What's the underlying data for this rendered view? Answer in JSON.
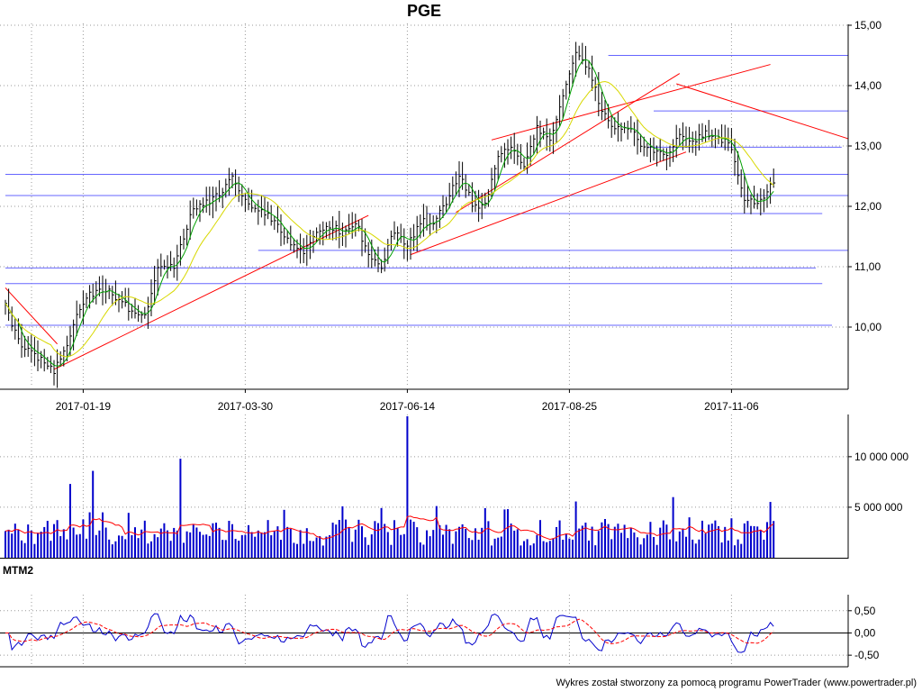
{
  "title": "PGE",
  "footer": "Wykres został stworzony za pomocą programu PowerTrader (www.powertrader.pl)",
  "colors": {
    "price_bar": "#000000",
    "ma_fast": "#00a000",
    "ma_slow": "#d8d800",
    "trendline": "#ff0000",
    "support_resistance": "#6666ff",
    "volume_bar": "#0000cc",
    "volume_ma": "#ff0000",
    "mtm_line": "#0000cc",
    "mtm_signal": "#ff0000",
    "grid": "#999999"
  },
  "chart_data": [
    {
      "type": "ohlc",
      "panel": "price",
      "title": "PGE",
      "x_tick_labels": [
        "2017-01-19",
        "2017-03-30",
        "2017-06-14",
        "2017-08-25",
        "2017-11-06"
      ],
      "x_ticks": [
        {
          "label": "2017-01-19",
          "index": 24
        },
        {
          "label": "2017-03-30",
          "index": 74
        },
        {
          "label": "2017-06-14",
          "index": 124
        },
        {
          "label": "2017-08-25",
          "index": 174
        },
        {
          "label": "2017-11-06",
          "index": 224
        }
      ],
      "y_tick_labels": [
        "10,00",
        "11,00",
        "12,00",
        "13,00",
        "14,00",
        "15,00"
      ],
      "ylim": [
        9.0,
        15.0
      ],
      "bar_count": 238,
      "anchors": [
        {
          "i": 0,
          "close": 10.35
        },
        {
          "i": 4,
          "close": 9.75
        },
        {
          "i": 10,
          "close": 9.5
        },
        {
          "i": 15,
          "close": 9.25
        },
        {
          "i": 18,
          "close": 9.6
        },
        {
          "i": 22,
          "close": 10.2
        },
        {
          "i": 26,
          "close": 10.55
        },
        {
          "i": 32,
          "close": 10.6
        },
        {
          "i": 36,
          "close": 10.4
        },
        {
          "i": 40,
          "close": 10.2
        },
        {
          "i": 43,
          "close": 10.15
        },
        {
          "i": 47,
          "close": 11.0
        },
        {
          "i": 52,
          "close": 11.0
        },
        {
          "i": 58,
          "close": 12.0
        },
        {
          "i": 64,
          "close": 12.1
        },
        {
          "i": 70,
          "close": 12.45
        },
        {
          "i": 76,
          "close": 12.0
        },
        {
          "i": 82,
          "close": 11.8
        },
        {
          "i": 88,
          "close": 11.4
        },
        {
          "i": 92,
          "close": 11.2
        },
        {
          "i": 96,
          "close": 11.6
        },
        {
          "i": 100,
          "close": 11.7
        },
        {
          "i": 104,
          "close": 11.55
        },
        {
          "i": 108,
          "close": 11.75
        },
        {
          "i": 112,
          "close": 11.2
        },
        {
          "i": 116,
          "close": 11.0
        },
        {
          "i": 120,
          "close": 11.6
        },
        {
          "i": 124,
          "close": 11.35
        },
        {
          "i": 128,
          "close": 11.75
        },
        {
          "i": 132,
          "close": 11.7
        },
        {
          "i": 136,
          "close": 12.05
        },
        {
          "i": 140,
          "close": 12.55
        },
        {
          "i": 144,
          "close": 12.05
        },
        {
          "i": 148,
          "close": 12.0
        },
        {
          "i": 152,
          "close": 12.85
        },
        {
          "i": 156,
          "close": 13.0
        },
        {
          "i": 160,
          "close": 12.65
        },
        {
          "i": 164,
          "close": 13.3
        },
        {
          "i": 168,
          "close": 13.15
        },
        {
          "i": 172,
          "close": 13.8
        },
        {
          "i": 176,
          "close": 14.5
        },
        {
          "i": 180,
          "close": 14.25
        },
        {
          "i": 184,
          "close": 13.6
        },
        {
          "i": 188,
          "close": 13.3
        },
        {
          "i": 192,
          "close": 13.3
        },
        {
          "i": 196,
          "close": 13.05
        },
        {
          "i": 200,
          "close": 12.9
        },
        {
          "i": 204,
          "close": 12.8
        },
        {
          "i": 208,
          "close": 13.25
        },
        {
          "i": 212,
          "close": 13.1
        },
        {
          "i": 216,
          "close": 13.2
        },
        {
          "i": 220,
          "close": 13.15
        },
        {
          "i": 224,
          "close": 13.0
        },
        {
          "i": 228,
          "close": 12.1
        },
        {
          "i": 232,
          "close": 12.05
        },
        {
          "i": 237,
          "close": 12.4
        }
      ],
      "moving_averages": [
        {
          "period": 5,
          "color": "#00a000"
        },
        {
          "period": 15,
          "color": "#d8d800"
        }
      ],
      "trendlines": [
        {
          "from": [
            0,
            10.65
          ],
          "to": [
            16,
            9.72
          ]
        },
        {
          "from": [
            15,
            9.3
          ],
          "to": [
            112,
            11.85
          ]
        },
        {
          "from": [
            125,
            11.2
          ],
          "to": [
            210,
            12.9
          ]
        },
        {
          "from": [
            139,
            11.9
          ],
          "to": [
            208,
            14.2
          ]
        },
        {
          "from": [
            150,
            13.1
          ],
          "to": [
            236,
            14.35
          ]
        },
        {
          "from": [
            207,
            14.03
          ],
          "to": [
            260,
            13.12
          ]
        }
      ],
      "horizontal_levels": [
        {
          "y": 14.5,
          "from": 186,
          "to": 262
        },
        {
          "y": 13.58,
          "from": 200,
          "to": 262
        },
        {
          "y": 12.98,
          "from": 198,
          "to": 258
        },
        {
          "y": 12.53,
          "from": 0,
          "to": 262
        },
        {
          "y": 12.18,
          "from": 0,
          "to": 262
        },
        {
          "y": 11.88,
          "from": 130,
          "to": 252
        },
        {
          "y": 11.27,
          "from": 78,
          "to": 262
        },
        {
          "y": 10.98,
          "from": 0,
          "to": 250
        },
        {
          "y": 10.72,
          "from": 0,
          "to": 252
        },
        {
          "y": 10.03,
          "from": 0,
          "to": 255
        }
      ]
    },
    {
      "type": "bar",
      "panel": "volume",
      "y_tick_labels": [
        "5 000 000",
        "10 000 000"
      ],
      "ylim": [
        0,
        14000000
      ],
      "spikes": [
        {
          "i": 124,
          "value": 14000000
        },
        {
          "i": 54,
          "value": 9800000
        },
        {
          "i": 27,
          "value": 8600000
        },
        {
          "i": 20,
          "value": 7300000
        },
        {
          "i": 206,
          "value": 6000000
        }
      ],
      "moving_average_color": "#ff0000"
    },
    {
      "type": "line",
      "panel": "indicator",
      "name": "MTM2",
      "y_tick_labels": [
        "0,50",
        "0,00",
        "-0,50"
      ],
      "ylim": [
        -0.72,
        0.82
      ],
      "series": [
        {
          "color": "#0000cc"
        },
        {
          "color": "#ff0000"
        }
      ]
    }
  ]
}
